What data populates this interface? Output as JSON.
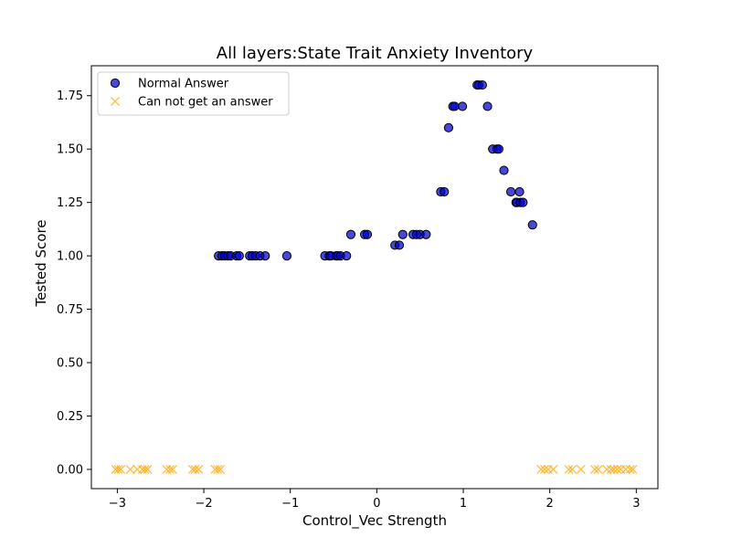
{
  "chart_data": {
    "type": "scatter",
    "title": "All layers:State Trait Anxiety Inventory",
    "xlabel": "Control_Vec Strength",
    "ylabel": "Tested Score",
    "xlim": [
      -3.3,
      3.25
    ],
    "ylim": [
      -0.09,
      1.89
    ],
    "xticks": [
      -3,
      -2,
      -1,
      0,
      1,
      2,
      3
    ],
    "xtick_labels": [
      "−3",
      "−2",
      "−1",
      "0",
      "1",
      "2",
      "3"
    ],
    "yticks": [
      0.0,
      0.25,
      0.5,
      0.75,
      1.0,
      1.25,
      1.5,
      1.75
    ],
    "ytick_labels": [
      "0.00",
      "0.25",
      "0.50",
      "0.75",
      "1.00",
      "1.25",
      "1.50",
      "1.75"
    ],
    "grid": false,
    "legend_position": "top-left",
    "series": [
      {
        "name": "Normal Answer",
        "marker": "circle",
        "color": "#0000cc",
        "edge_color": "#000000",
        "points": [
          [
            -1.83,
            1.0
          ],
          [
            -1.79,
            1.0
          ],
          [
            -1.76,
            1.0
          ],
          [
            -1.72,
            1.0
          ],
          [
            -1.69,
            1.0
          ],
          [
            -1.62,
            1.0
          ],
          [
            -1.59,
            1.0
          ],
          [
            -1.47,
            1.0
          ],
          [
            -1.44,
            1.0
          ],
          [
            -1.4,
            1.0
          ],
          [
            -1.35,
            1.0
          ],
          [
            -1.29,
            1.0
          ],
          [
            -1.04,
            1.0
          ],
          [
            -0.6,
            1.0
          ],
          [
            -0.55,
            1.0
          ],
          [
            -0.53,
            1.0
          ],
          [
            -0.47,
            1.0
          ],
          [
            -0.45,
            1.0
          ],
          [
            -0.42,
            1.0
          ],
          [
            -0.35,
            1.0
          ],
          [
            -0.3,
            1.1
          ],
          [
            -0.14,
            1.1
          ],
          [
            -0.11,
            1.1
          ],
          [
            0.21,
            1.05
          ],
          [
            0.26,
            1.05
          ],
          [
            0.3,
            1.1
          ],
          [
            0.42,
            1.1
          ],
          [
            0.46,
            1.1
          ],
          [
            0.5,
            1.1
          ],
          [
            0.57,
            1.1
          ],
          [
            0.74,
            1.3
          ],
          [
            0.78,
            1.3
          ],
          [
            0.83,
            1.6
          ],
          [
            0.88,
            1.7
          ],
          [
            0.9,
            1.7
          ],
          [
            0.99,
            1.7
          ],
          [
            1.16,
            1.8
          ],
          [
            1.18,
            1.8
          ],
          [
            1.22,
            1.8
          ],
          [
            1.28,
            1.7
          ],
          [
            1.34,
            1.5
          ],
          [
            1.39,
            1.5
          ],
          [
            1.41,
            1.5
          ],
          [
            1.47,
            1.4
          ],
          [
            1.55,
            1.3
          ],
          [
            1.61,
            1.25
          ],
          [
            1.62,
            1.25
          ],
          [
            1.65,
            1.3
          ],
          [
            1.66,
            1.25
          ],
          [
            1.69,
            1.25
          ],
          [
            1.8,
            1.145
          ]
        ]
      },
      {
        "name": "Can not get an answer",
        "marker": "x",
        "color": "#ffa500",
        "points": [
          [
            -3.02,
            0.0
          ],
          [
            -2.99,
            0.0
          ],
          [
            -2.96,
            0.0
          ],
          [
            -2.85,
            0.0
          ],
          [
            -2.77,
            0.0
          ],
          [
            -2.71,
            0.0
          ],
          [
            -2.68,
            0.0
          ],
          [
            -2.65,
            0.0
          ],
          [
            -2.43,
            0.0
          ],
          [
            -2.39,
            0.0
          ],
          [
            -2.36,
            0.0
          ],
          [
            -2.13,
            0.0
          ],
          [
            -2.1,
            0.0
          ],
          [
            -2.06,
            0.0
          ],
          [
            -1.87,
            0.0
          ],
          [
            -1.84,
            0.0
          ],
          [
            -1.81,
            0.0
          ],
          [
            1.9,
            0.0
          ],
          [
            1.94,
            0.0
          ],
          [
            1.98,
            0.0
          ],
          [
            2.04,
            0.0
          ],
          [
            2.22,
            0.0
          ],
          [
            2.26,
            0.0
          ],
          [
            2.36,
            0.0
          ],
          [
            2.52,
            0.0
          ],
          [
            2.56,
            0.0
          ],
          [
            2.66,
            0.0
          ],
          [
            2.71,
            0.0
          ],
          [
            2.74,
            0.0
          ],
          [
            2.78,
            0.0
          ],
          [
            2.82,
            0.0
          ],
          [
            2.88,
            0.0
          ],
          [
            2.93,
            0.0
          ],
          [
            2.96,
            0.0
          ]
        ]
      }
    ]
  }
}
